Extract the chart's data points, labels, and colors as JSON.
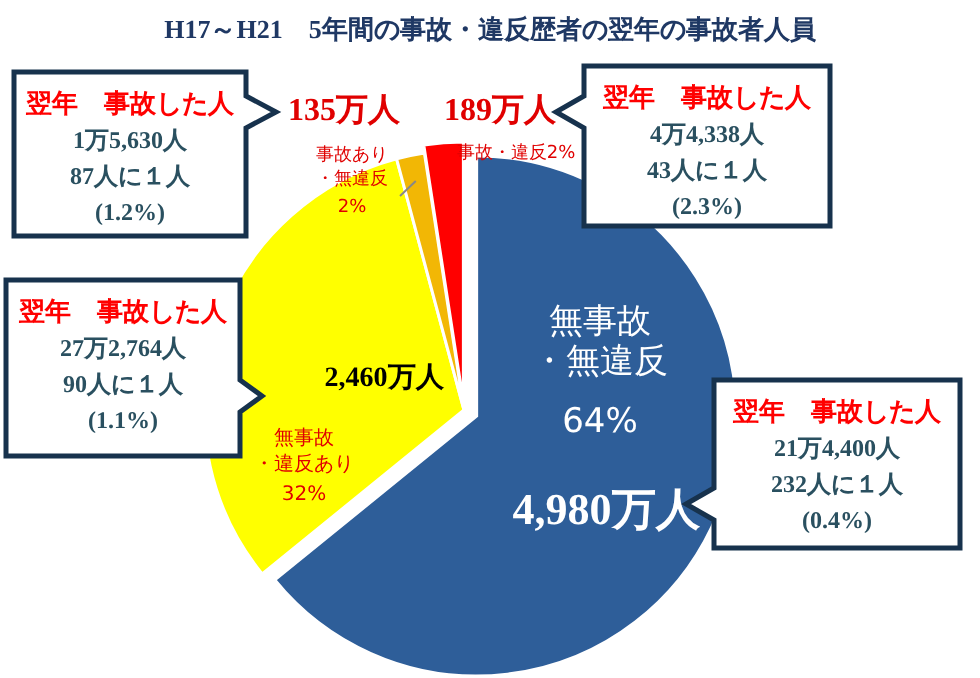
{
  "chart_data": {
    "type": "pie",
    "title": "H17～H21　5年間の事故・違反歴者の翌年の事故者人員",
    "categories": [
      "無事故・無違反",
      "無事故・違反あり",
      "事故あり・無違反",
      "事故・違反"
    ],
    "values": [
      4980,
      2460,
      135,
      189
    ],
    "value_labels": [
      "4,980万人",
      "2,460万人",
      "135万人",
      "189万人"
    ],
    "colors": [
      "#2e5e99",
      "#ffff00",
      "#f2b705",
      "#ff0000"
    ],
    "annotations": [
      "64%",
      "32%",
      "2%",
      "2%",
      "翌年　事故した人\n21万4,400人\n232人に１人\n(0.4%)",
      "翌年　事故した人\n27万2,764人\n90人に１人\n(1.1%)",
      "翌年　事故した人\n1万5,630人\n87人に１人\n(1.2%)",
      "翌年　事故した人\n4万4,338人\n43人に１人\n(2.3%)"
    ]
  }
}
